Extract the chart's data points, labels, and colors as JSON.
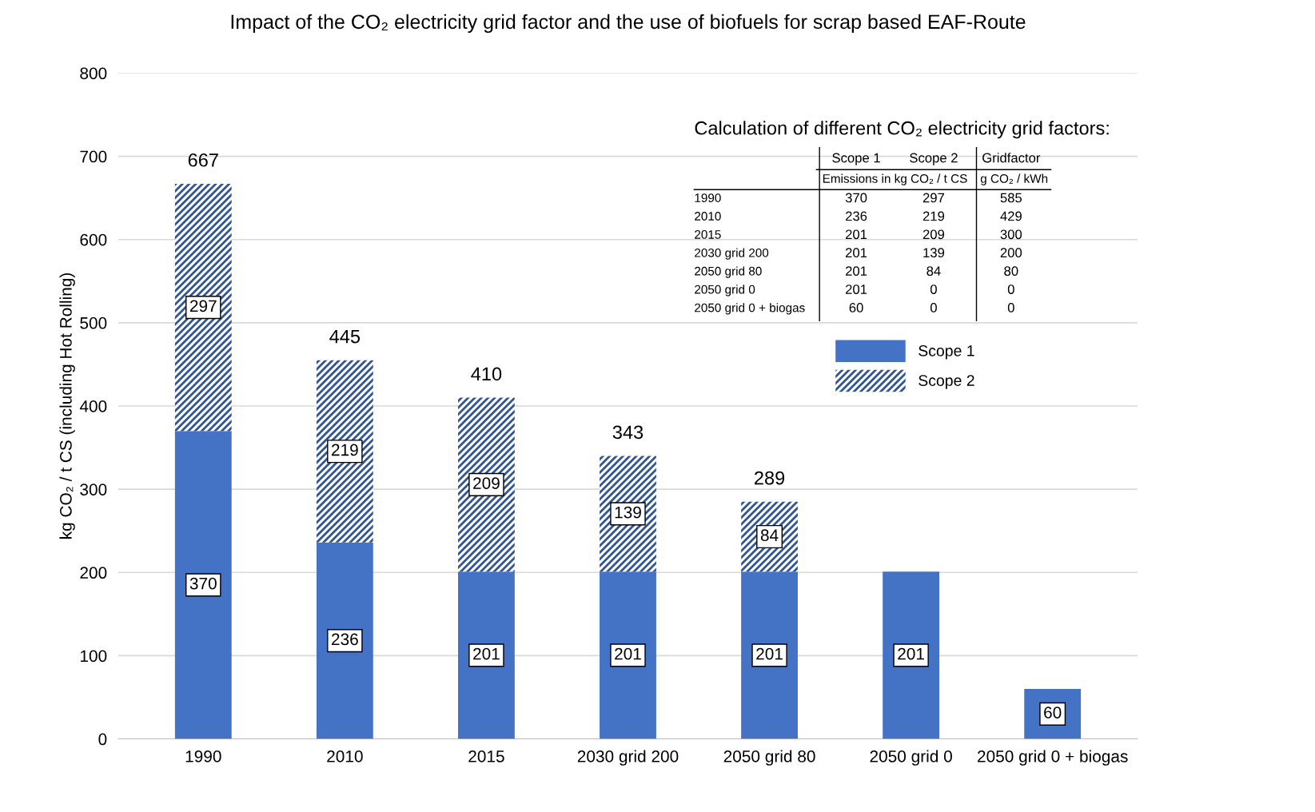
{
  "chart_data": {
    "type": "bar",
    "stacked": true,
    "title": "Impact of the CO₂ electricity grid factor and the use of biofuels for scrap based EAF-Route",
    "ylabel": "kg CO₂ / t CS (including Hot Rolling)",
    "categories": [
      "1990",
      "2010",
      "2015",
      "2030 grid 200",
      "2050 grid 80",
      "2050 grid 0",
      "2050 grid 0 + biogas"
    ],
    "series": [
      {
        "name": "Scope 1",
        "color": "#4472c4",
        "values": [
          370,
          236,
          201,
          201,
          201,
          201,
          60
        ],
        "value_labels": [
          "370",
          "236",
          "201",
          "201",
          "201",
          "201",
          "60"
        ]
      },
      {
        "name": "Scope 2",
        "color": "#2f5597",
        "values": [
          297,
          219,
          209,
          139,
          84,
          0,
          0
        ],
        "value_labels": [
          "297",
          "219",
          "209",
          "139",
          "84",
          null,
          null
        ]
      }
    ],
    "ylim": [
      0,
      800
    ],
    "yticks": [
      0,
      100,
      200,
      300,
      400,
      500,
      600,
      700,
      800
    ],
    "grid": "y",
    "legend": "top right",
    "annotations": [
      "Calculation of different CO₂ electricity grid factors:",
      "Scope 1",
      "Scope 2",
      "Gridfactor",
      "Emissions in kg CO₂ / t CS",
      "g CO₂ / kWh",
      "1990",
      "370",
      "297",
      "585",
      "2010",
      "236",
      "219",
      "429",
      "2015",
      "201",
      "209",
      "300",
      "2030 grid 200",
      "201",
      "139",
      "200",
      "2050 grid 80",
      "201",
      "84",
      "80",
      "2050 grid 0",
      "201",
      "0",
      "0",
      "2050 grid 0 + biogas",
      "60",
      "0",
      "0",
      {
        "text": "667",
        "x": "1990",
        "y": 667
      },
      {
        "text": "445",
        "x": "2010",
        "y": 455
      },
      {
        "text": "410",
        "x": "2015",
        "y": 410
      },
      {
        "text": "343",
        "x": "2030 grid 200",
        "y": 340
      },
      {
        "text": "289",
        "x": "2050 grid 80",
        "y": 285
      }
    ]
  }
}
